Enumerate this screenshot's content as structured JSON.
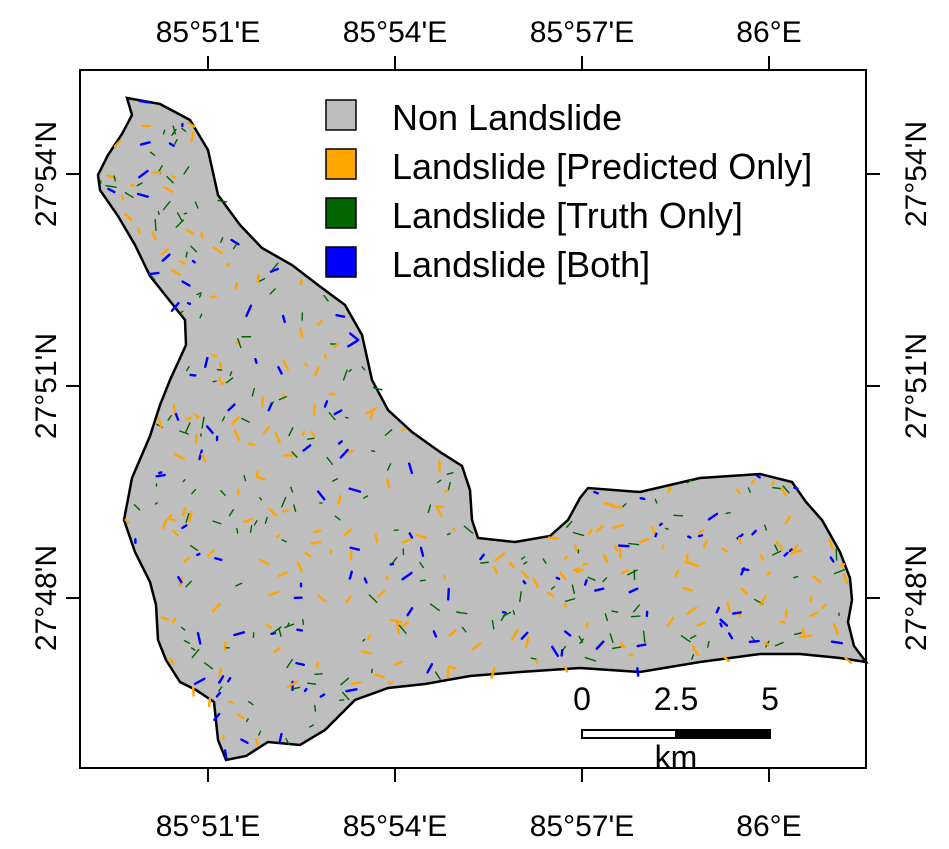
{
  "map": {
    "colors": {
      "non_landslide": "#BEBEBE",
      "predicted_only": "#FFA500",
      "truth_only": "#006400",
      "both": "#0000FF"
    },
    "longitude_ticks": [
      "85°51'E",
      "85°54'E",
      "85°57'E",
      "86°E"
    ],
    "latitude_ticks": [
      "27°54'N",
      "27°51'N",
      "27°48'N"
    ],
    "legend": [
      {
        "label": "Non Landslide",
        "color_key": "non_landslide"
      },
      {
        "label": "Landslide [Predicted Only]",
        "color_key": "predicted_only"
      },
      {
        "label": "Landslide [Truth Only]",
        "color_key": "truth_only"
      },
      {
        "label": "Landslide [Both]",
        "color_key": "both"
      }
    ],
    "scalebar": {
      "labels": [
        "0",
        "2.5",
        "5"
      ],
      "unit": "km"
    }
  }
}
